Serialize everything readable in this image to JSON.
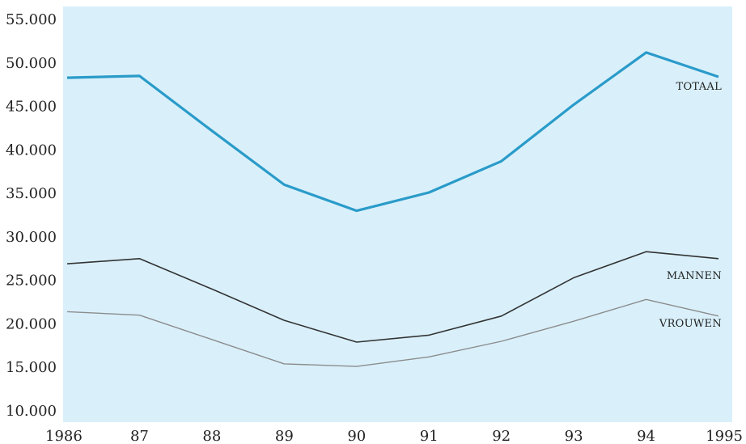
{
  "chart_data": {
    "type": "line",
    "title": "",
    "xlabel": "",
    "ylabel": "",
    "x": [
      "1986",
      "87",
      "88",
      "89",
      "90",
      "91",
      "92",
      "93",
      "94",
      "1995"
    ],
    "ylim": [
      10000,
      55000
    ],
    "yticks": [
      "10.000",
      "15.000",
      "20.000",
      "25.000",
      "30.000",
      "35.000",
      "40.000",
      "45.000",
      "50.000",
      "55.000"
    ],
    "grid": false,
    "legend": "inline labels at right end of each line",
    "series": [
      {
        "name": "TOTAAL",
        "color": "#2a9bc9",
        "values": [
          48300,
          48500,
          42200,
          36000,
          33000,
          35100,
          38700,
          45200,
          51200,
          48400
        ]
      },
      {
        "name": "MANNEN",
        "color": "#333333",
        "values": [
          26900,
          27500,
          24000,
          20400,
          17900,
          18700,
          20900,
          25300,
          28300,
          27500
        ]
      },
      {
        "name": "VROUWEN",
        "color": "#8c8c8c",
        "values": [
          21400,
          21000,
          18200,
          15400,
          15100,
          16200,
          18000,
          20300,
          22800,
          20900
        ]
      }
    ],
    "colors": {
      "plot_background": "#d9f0fb"
    }
  }
}
